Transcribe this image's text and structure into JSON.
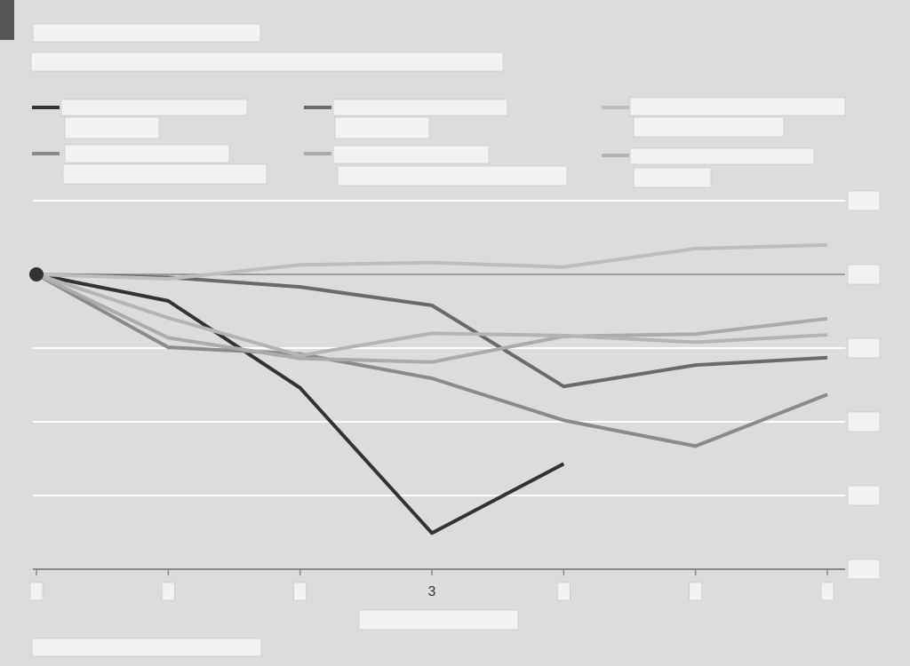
{
  "chart_data": {
    "type": "line",
    "x": [
      0,
      1,
      2,
      3,
      4,
      5,
      6
    ],
    "xlim": [
      0,
      6
    ],
    "xticks": [
      0,
      1,
      2,
      3,
      4,
      5,
      6
    ],
    "xtick_labels": [
      null,
      null,
      null,
      "3",
      null,
      null,
      null
    ],
    "ylim": [
      -4,
      1
    ],
    "yticks": [
      -4,
      -3,
      -2,
      -1,
      0,
      1
    ],
    "grid": true,
    "series": [
      {
        "color": "#333333",
        "values": [
          0,
          -0.36,
          -1.54,
          -3.51,
          -2.57,
          null,
          null
        ]
      },
      {
        "color": "#6a6a6a",
        "values": [
          0,
          -0.04,
          -0.17,
          -0.42,
          -1.52,
          -1.23,
          -1.13
        ]
      },
      {
        "color": "#bdbdbd",
        "values": [
          0,
          -0.06,
          0.13,
          0.16,
          0.1,
          0.35,
          0.4
        ]
      },
      {
        "color": "#8a8a8a",
        "values": [
          0,
          -0.99,
          -1.08,
          -1.41,
          -1.98,
          -2.33,
          -1.63
        ]
      },
      {
        "color": "#ababab",
        "values": [
          0,
          -0.86,
          -1.14,
          -1.19,
          -0.84,
          -0.81,
          -0.6
        ]
      },
      {
        "color": "#b4b4b4",
        "values": [
          0,
          -0.59,
          -1.1,
          -0.8,
          -0.83,
          -0.92,
          -0.82
        ]
      }
    ]
  }
}
